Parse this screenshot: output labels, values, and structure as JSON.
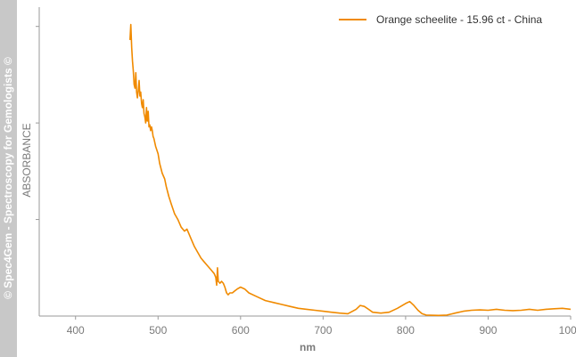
{
  "watermark": "© Spec4Gem - Spectroscopy for Gemologists ©",
  "chart_data": {
    "type": "line",
    "xlabel": "nm",
    "ylabel": "ABSORBANCE",
    "xlim": [
      356,
      1000
    ],
    "ylim": [
      0,
      1.6
    ],
    "x_ticks": [
      400,
      500,
      600,
      700,
      800,
      900,
      1000
    ],
    "x_tick_labels": [
      "400",
      "500",
      "600",
      "700",
      "800",
      "900",
      "1000"
    ],
    "y_ticks": [
      0.5,
      1.0,
      1.5
    ],
    "y_tick_labels": [],
    "grid": false,
    "legend_position": "top-right",
    "series": [
      {
        "name": "Orange scheelite - 15.96 ct - China",
        "color": "#f08a00",
        "x": [
          466,
          467,
          468,
          469,
          470,
          471,
          472,
          473,
          474,
          475,
          476,
          477,
          478,
          479,
          480,
          481,
          482,
          483,
          484,
          485,
          486,
          487,
          488,
          489,
          490,
          491,
          492,
          493,
          494,
          495,
          497,
          500,
          502,
          505,
          508,
          510,
          513,
          516,
          520,
          524,
          528,
          532,
          535,
          537,
          540,
          544,
          548,
          552,
          556,
          560,
          564,
          568,
          570,
          571,
          572,
          573,
          575,
          577,
          579,
          581,
          583,
          585,
          587,
          590,
          593,
          596,
          600,
          605,
          610,
          620,
          630,
          640,
          650,
          660,
          670,
          680,
          690,
          700,
          710,
          720,
          730,
          740,
          745,
          750,
          755,
          760,
          770,
          780,
          790,
          800,
          805,
          810,
          815,
          820,
          825,
          830,
          840,
          850,
          860,
          870,
          880,
          890,
          900,
          910,
          920,
          930,
          940,
          950,
          960,
          970,
          980,
          990,
          1000
        ],
        "y": [
          1.43,
          1.51,
          1.39,
          1.32,
          1.27,
          1.2,
          1.18,
          1.26,
          1.16,
          1.13,
          1.17,
          1.22,
          1.14,
          1.16,
          1.1,
          1.08,
          1.12,
          1.05,
          1.03,
          1.0,
          1.08,
          1.01,
          1.06,
          0.98,
          0.99,
          0.96,
          0.98,
          0.96,
          0.93,
          0.92,
          0.88,
          0.84,
          0.79,
          0.74,
          0.71,
          0.67,
          0.62,
          0.58,
          0.53,
          0.5,
          0.46,
          0.44,
          0.45,
          0.43,
          0.4,
          0.36,
          0.33,
          0.3,
          0.28,
          0.26,
          0.24,
          0.22,
          0.2,
          0.16,
          0.25,
          0.18,
          0.17,
          0.18,
          0.17,
          0.15,
          0.12,
          0.11,
          0.12,
          0.12,
          0.13,
          0.14,
          0.15,
          0.14,
          0.12,
          0.1,
          0.08,
          0.07,
          0.06,
          0.05,
          0.04,
          0.035,
          0.03,
          0.025,
          0.02,
          0.015,
          0.012,
          0.035,
          0.055,
          0.05,
          0.035,
          0.02,
          0.015,
          0.02,
          0.04,
          0.065,
          0.075,
          0.055,
          0.03,
          0.012,
          0.005,
          0.004,
          0.003,
          0.005,
          0.015,
          0.025,
          0.03,
          0.032,
          0.03,
          0.035,
          0.03,
          0.028,
          0.03,
          0.035,
          0.03,
          0.035,
          0.038,
          0.04,
          0.035
        ]
      }
    ]
  }
}
